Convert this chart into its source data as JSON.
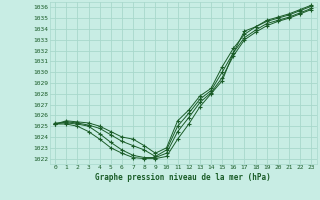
{
  "title": "Graphe pression niveau de la mer (hPa)",
  "background_color": "#c8ede4",
  "grid_color": "#a8d8cc",
  "line_color": "#1a5c28",
  "xlim": [
    -0.5,
    23.5
  ],
  "ylim": [
    1021.5,
    1036.5
  ],
  "yticks": [
    1022,
    1023,
    1024,
    1025,
    1026,
    1027,
    1028,
    1029,
    1030,
    1031,
    1032,
    1033,
    1034,
    1035,
    1036
  ],
  "xticks": [
    0,
    1,
    2,
    3,
    4,
    5,
    6,
    7,
    8,
    9,
    10,
    11,
    12,
    13,
    14,
    15,
    16,
    17,
    18,
    19,
    20,
    21,
    22,
    23
  ],
  "series": [
    {
      "x": [
        0,
        1,
        2,
        3,
        4,
        5,
        6,
        7,
        8,
        9,
        10,
        11,
        12,
        13,
        14,
        15,
        16,
        17,
        18,
        19,
        20,
        21,
        22,
        23
      ],
      "y": [
        1025.2,
        1025.5,
        1025.4,
        1025.3,
        1025.0,
        1024.5,
        1024.0,
        1023.8,
        1023.2,
        1022.5,
        1023.0,
        1025.5,
        1026.5,
        1027.8,
        1028.5,
        1030.5,
        1032.2,
        1033.5,
        1034.2,
        1034.8,
        1035.1,
        1035.4,
        1035.8,
        1036.2
      ]
    },
    {
      "x": [
        0,
        1,
        2,
        3,
        4,
        5,
        6,
        7,
        8,
        9,
        10,
        11,
        12,
        13,
        14,
        15,
        16,
        17,
        18,
        19,
        20,
        21,
        22,
        23
      ],
      "y": [
        1025.2,
        1025.4,
        1025.3,
        1025.1,
        1024.8,
        1024.2,
        1023.6,
        1023.2,
        1022.8,
        1022.2,
        1022.8,
        1025.0,
        1026.2,
        1027.5,
        1028.3,
        1030.0,
        1031.8,
        1033.2,
        1033.9,
        1034.5,
        1034.8,
        1035.1,
        1035.5,
        1035.9
      ]
    },
    {
      "x": [
        0,
        1,
        2,
        3,
        4,
        5,
        6,
        7,
        8,
        9,
        10,
        11,
        12,
        13,
        14,
        15,
        16,
        17,
        18,
        19,
        20,
        21,
        22,
        23
      ],
      "y": [
        1025.3,
        1025.3,
        1025.2,
        1025.0,
        1024.3,
        1023.5,
        1022.8,
        1022.3,
        1022.1,
        1022.1,
        1022.5,
        1024.5,
        1025.8,
        1027.2,
        1028.1,
        1029.5,
        1031.5,
        1033.0,
        1033.7,
        1034.3,
        1034.7,
        1035.0,
        1035.4,
        1035.8
      ]
    },
    {
      "x": [
        0,
        1,
        2,
        3,
        4,
        5,
        6,
        7,
        8,
        9,
        10,
        11,
        12,
        13,
        14,
        15,
        16,
        17,
        18,
        19,
        20,
        21,
        22,
        23
      ],
      "y": [
        1025.2,
        1025.2,
        1025.0,
        1024.5,
        1023.8,
        1023.0,
        1022.5,
        1022.1,
        1022.0,
        1022.0,
        1022.2,
        1023.8,
        1025.2,
        1026.8,
        1028.0,
        1029.2,
        1031.8,
        1033.8,
        1034.2,
        1034.7,
        1035.0,
        1035.3,
        1035.7,
        1036.1
      ]
    }
  ]
}
